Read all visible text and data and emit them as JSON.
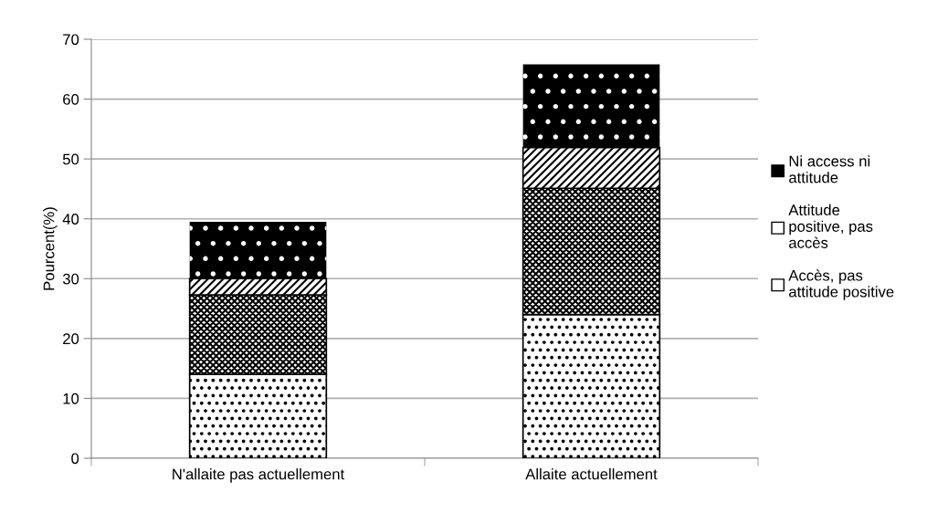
{
  "chart_data": {
    "type": "bar",
    "stacked": true,
    "ylabel": "Pourcent(%)",
    "categories": [
      "N'allaite pas actuellement",
      "Allaite actuellement"
    ],
    "series": [
      {
        "color": "#ffffff",
        "values": [
          14.0,
          24.0
        ]
      },
      {
        "name": "Accès, pas\nattitude positive",
        "color": "#ffffff",
        "values": [
          13.3,
          21.1
        ]
      },
      {
        "name": "Attitude\npositive, pas\naccès",
        "color": "#ffffff",
        "values": [
          2.7,
          6.8
        ]
      },
      {
        "name": "Ni access ni\nattitude",
        "color": "#000000",
        "values": [
          9.5,
          13.9
        ]
      }
    ],
    "ylim": [
      0,
      70
    ],
    "yticks": [
      0,
      10,
      20,
      30,
      40,
      50,
      60,
      70
    ],
    "grid": "y",
    "legend": "right"
  }
}
